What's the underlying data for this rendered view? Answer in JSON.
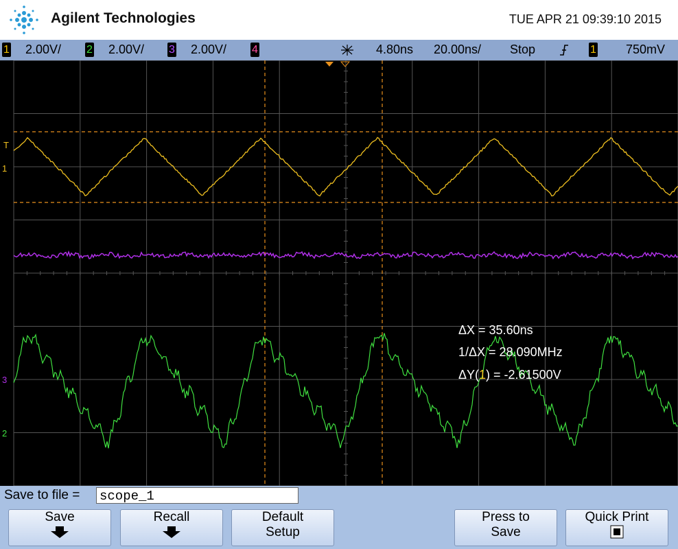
{
  "header": {
    "brand": "Agilent Technologies",
    "datetime": "TUE APR 21 09:39:10 2015"
  },
  "status": {
    "ch1": {
      "num": "1",
      "scale": "2.00V/"
    },
    "ch2": {
      "num": "2",
      "scale": "2.00V/"
    },
    "ch3": {
      "num": "3",
      "scale": "2.00V/"
    },
    "ch4": {
      "num": "4"
    },
    "delay": "4.80ns",
    "timebase": "20.00ns/",
    "run_state": "Stop",
    "trigger_source": "1",
    "trigger_level": "750mV"
  },
  "screen": {
    "markers": {
      "trigger": "T",
      "ch1": "1",
      "ch3": "3",
      "ch2": "2"
    },
    "measurements": {
      "dx": "ΔX = 35.60ns",
      "inv_dx": "1/ΔX = 28.090MHz",
      "dy_prefix": "ΔY(",
      "dy_source": "1",
      "dy_suffix": ") = -2.61500V"
    }
  },
  "softkeys": {
    "file_label": "Save to file =",
    "file_name": "scope_1",
    "buttons": [
      {
        "label": "Save"
      },
      {
        "label": "Recall"
      },
      {
        "label": "Default Setup"
      },
      {
        "label": "Press to Save"
      },
      {
        "label": "Quick Print"
      }
    ]
  }
}
